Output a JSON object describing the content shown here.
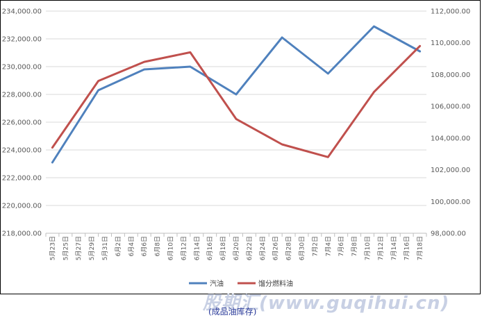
{
  "chart_data": {
    "type": "line",
    "categories": [
      "5月23日",
      "5月25日",
      "5月27日",
      "5月29日",
      "5月31日",
      "6月2日",
      "6月4日",
      "6月6日",
      "6月8日",
      "6月10日",
      "6月12日",
      "6月14日",
      "6月16日",
      "6月18日",
      "6月20日",
      "6月22日",
      "6月24日",
      "6月26日",
      "6月28日",
      "6月30日",
      "7月2日",
      "7月4日",
      "7月6日",
      "7月8日",
      "7月10日",
      "7月12日",
      "7月14日",
      "7月16日",
      "7月18日"
    ],
    "y_left": {
      "min": 218000,
      "max": 234000,
      "step": 2000,
      "ticks": [
        "218,000.00",
        "220,000.00",
        "222,000.00",
        "224,000.00",
        "226,000.00",
        "228,000.00",
        "230,000.00",
        "232,000.00",
        "234,000.00"
      ]
    },
    "y_right": {
      "min": 98000,
      "max": 112000,
      "step": 2000,
      "ticks": [
        "98,000.00",
        "100,000.00",
        "102,000.00",
        "104,000.00",
        "106,000.00",
        "108,000.00",
        "110,000.00",
        "112,000.00"
      ]
    },
    "grid": true,
    "legend_position": "bottom",
    "series": [
      {
        "name": "汽油",
        "axis": "left",
        "color": "#4f81bd",
        "points": [
          [
            "5月23日",
            223100
          ],
          [
            "5月30日",
            228300
          ],
          [
            "6月6日",
            229800
          ],
          [
            "6月13日",
            230000
          ],
          [
            "6月20日",
            228000
          ],
          [
            "6月27日",
            232100
          ],
          [
            "7月4日",
            229500
          ],
          [
            "7月11日",
            232900
          ],
          [
            "7月18日",
            231100
          ]
        ]
      },
      {
        "name": "馏分燃料油",
        "axis": "right",
        "color": "#c0504d",
        "points": [
          [
            "5月23日",
            103400
          ],
          [
            "5月30日",
            107600
          ],
          [
            "6月6日",
            108800
          ],
          [
            "6月13日",
            109400
          ],
          [
            "6月20日",
            105200
          ],
          [
            "6月27日",
            103600
          ],
          [
            "7月4日",
            102800
          ],
          [
            "7月11日",
            106900
          ],
          [
            "7月18日",
            109800
          ]
        ]
      }
    ]
  },
  "watermark": "股期汇(www.guqihui.cn)",
  "caption": "(成品油库存)"
}
